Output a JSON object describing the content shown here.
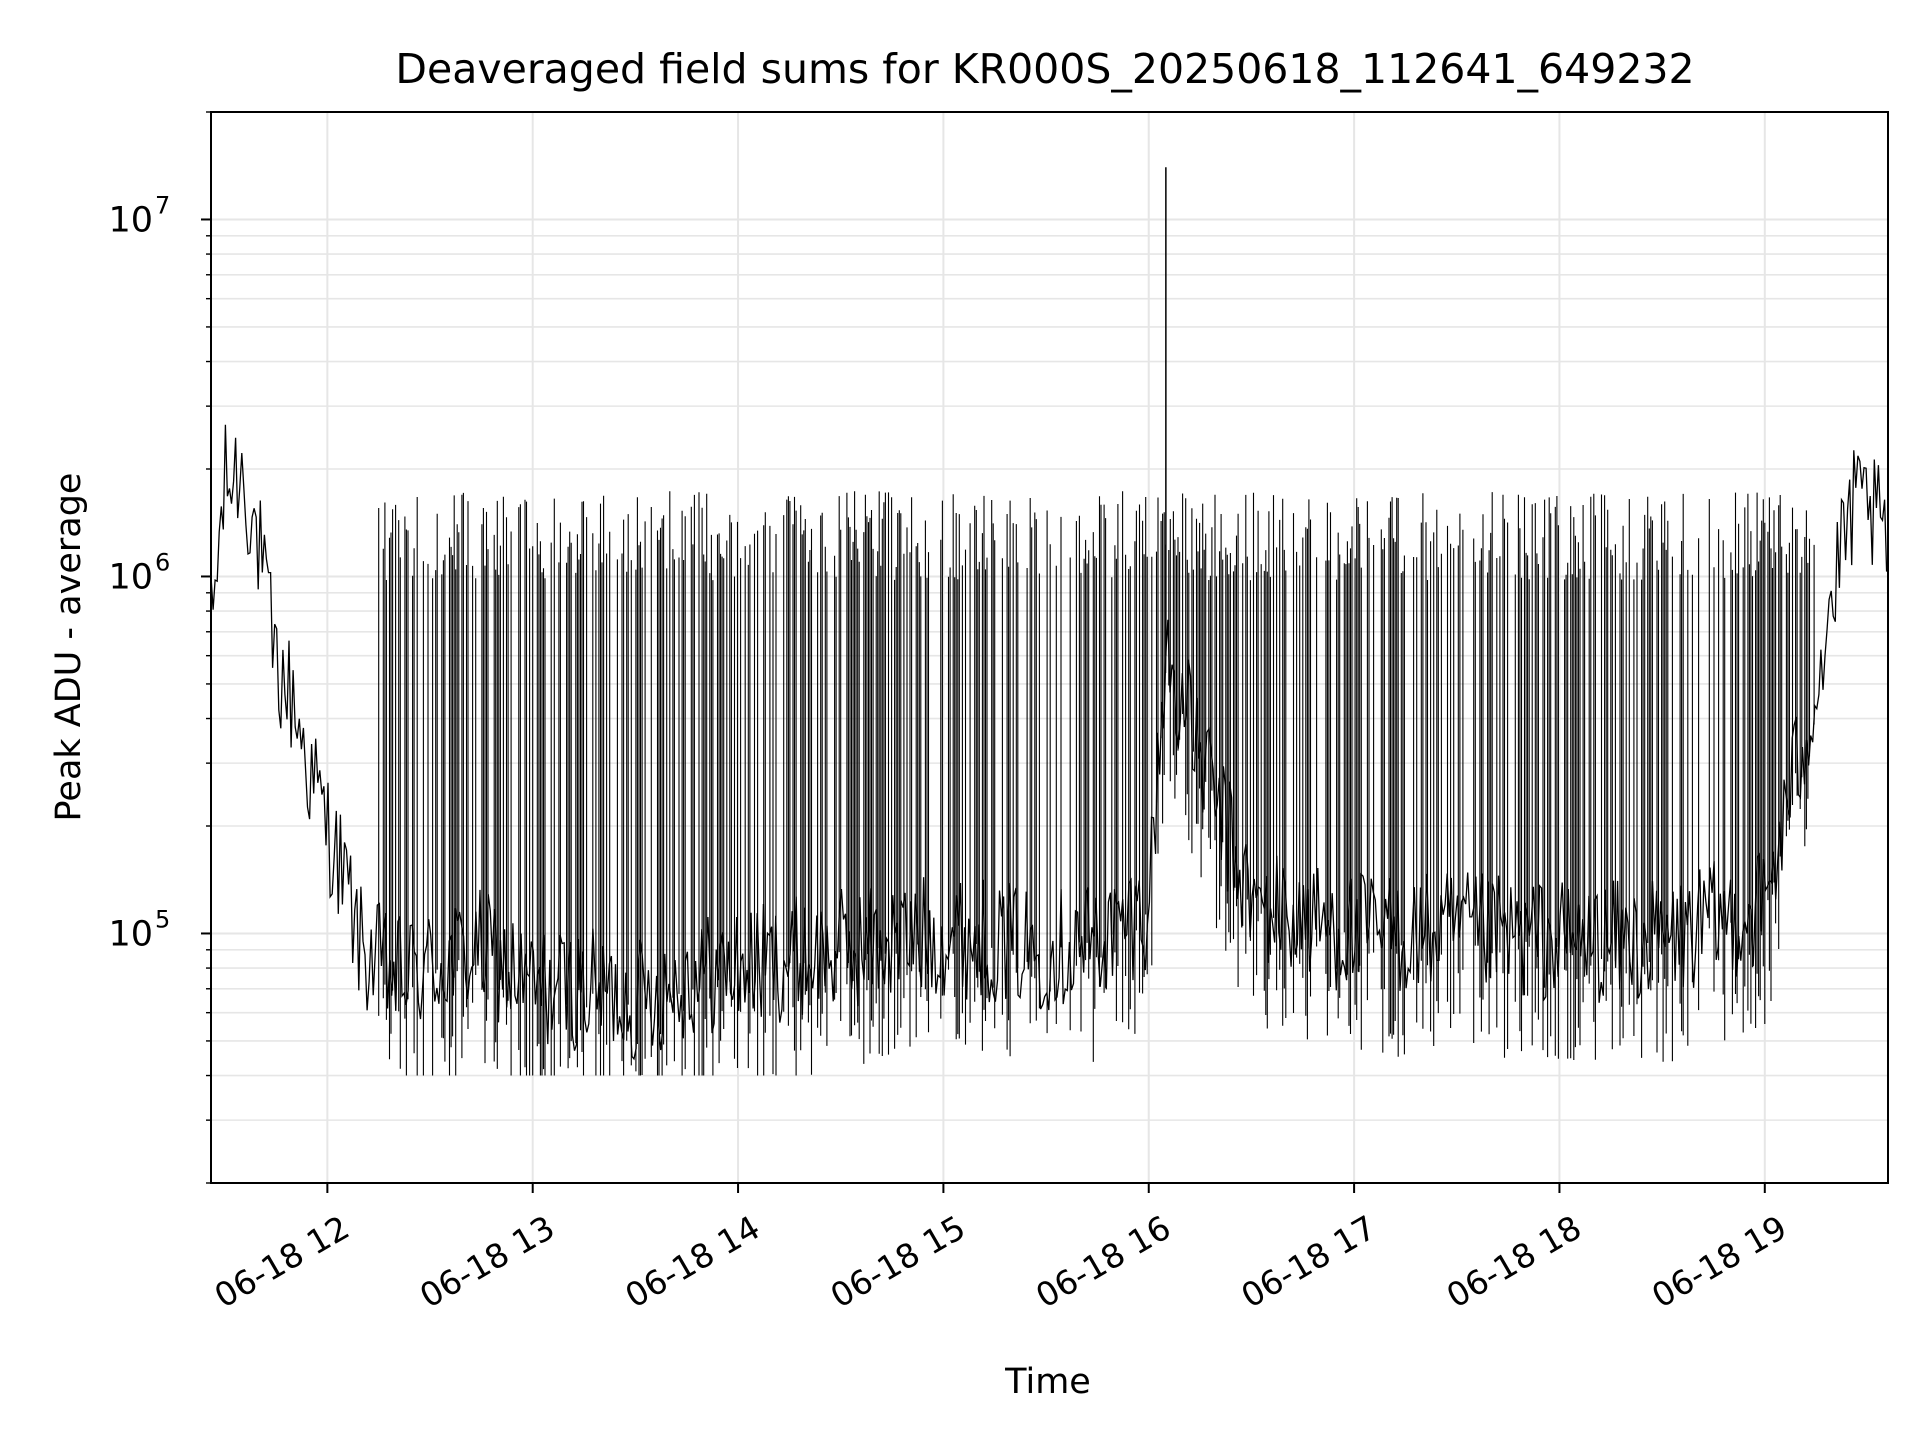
{
  "chart_data": {
    "type": "line",
    "title": "Deaveraged field sums for KR000S_20250618_112641_649232",
    "xlabel": "Time",
    "ylabel": "Peak ADU - average",
    "yscale": "log",
    "ylim": [
      20000,
      20000000
    ],
    "xlim": [
      "2025-06-18 11:26",
      "2025-06-18 19:36"
    ],
    "grid": true,
    "line_color": "#000000",
    "grid_color": "#e6e6e6",
    "x_ticks": [
      {
        "value": "2025-06-18 12:00",
        "label": "06-18 12"
      },
      {
        "value": "2025-06-18 13:00",
        "label": "06-18 13"
      },
      {
        "value": "2025-06-18 14:00",
        "label": "06-18 14"
      },
      {
        "value": "2025-06-18 15:00",
        "label": "06-18 15"
      },
      {
        "value": "2025-06-18 16:00",
        "label": "06-18 16"
      },
      {
        "value": "2025-06-18 17:00",
        "label": "06-18 17"
      },
      {
        "value": "2025-06-18 18:00",
        "label": "06-18 18"
      },
      {
        "value": "2025-06-18 19:00",
        "label": "06-18 19"
      }
    ],
    "y_ticks": [
      {
        "value": 100000,
        "label": "10",
        "exp": "5"
      },
      {
        "value": 1000000,
        "label": "10",
        "exp": "6"
      },
      {
        "value": 10000000,
        "label": "10",
        "exp": "7"
      }
    ],
    "series": [
      {
        "x": [
          "2025-06-18 11:26",
          "2025-06-18 11:30",
          "2025-06-18 11:35",
          "2025-06-18 11:40",
          "2025-06-18 11:45",
          "2025-06-18 11:50",
          "2025-06-18 11:55",
          "2025-06-18 12:00",
          "2025-06-18 12:05",
          "2025-06-18 12:10",
          "2025-06-18 12:20",
          "2025-06-18 12:30",
          "2025-06-18 12:45",
          "2025-06-18 13:00",
          "2025-06-18 13:15",
          "2025-06-18 13:30",
          "2025-06-18 13:45",
          "2025-06-18 14:00",
          "2025-06-18 14:30",
          "2025-06-18 15:00",
          "2025-06-18 15:30",
          "2025-06-18 15:50",
          "2025-06-18 16:00",
          "2025-06-18 16:05",
          "2025-06-18 16:30",
          "2025-06-18 17:00",
          "2025-06-18 17:30",
          "2025-06-18 18:00",
          "2025-06-18 18:30",
          "2025-06-18 19:00",
          "2025-06-18 19:15",
          "2025-06-18 19:25",
          "2025-06-18 19:30",
          "2025-06-18 19:36"
        ],
        "y": [
          700000,
          1800000,
          2000000,
          1200000,
          550000,
          450000,
          280000,
          200000,
          140000,
          90000,
          75000,
          80000,
          90000,
          70000,
          70000,
          65000,
          75000,
          80000,
          90000,
          100000,
          90000,
          100000,
          120000,
          600000,
          120000,
          100000,
          100000,
          95000,
          95000,
          120000,
          500000,
          1500000,
          1600000,
          1200000
        ]
      }
    ],
    "annotations": [
      {
        "type": "spike",
        "x": "2025-06-18 16:05",
        "y": 14000000
      },
      {
        "type": "dense_spikes",
        "x_from": "2025-06-18 12:15",
        "x_to": "2025-06-18 19:15",
        "y_high": 1300000,
        "y_low": 40000
      }
    ]
  }
}
